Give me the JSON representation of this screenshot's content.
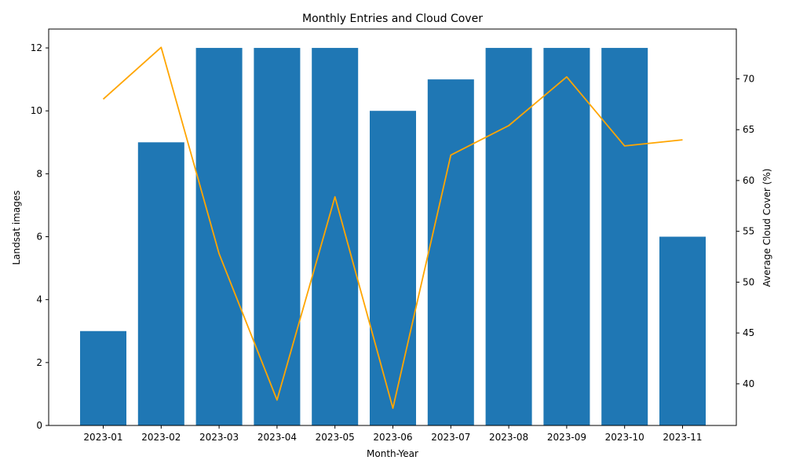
{
  "chart_data": {
    "type": "bar",
    "title": "Monthly Entries and Cloud Cover",
    "xlabel": "Month-Year",
    "ylabel": "Landsat images",
    "y2label": "Average Cloud Cover (%)",
    "categories": [
      "2023-01",
      "2023-02",
      "2023-03",
      "2023-04",
      "2023-05",
      "2023-06",
      "2023-07",
      "2023-08",
      "2023-09",
      "2023-10",
      "2023-11"
    ],
    "series": [
      {
        "type": "bar",
        "axis": "left",
        "color": "#1f77b4",
        "values": [
          3,
          9,
          12,
          12,
          12,
          10,
          11,
          12,
          12,
          12,
          6
        ]
      },
      {
        "type": "line",
        "axis": "right",
        "color": "#ffa500",
        "values": [
          68.0,
          73.1,
          52.8,
          38.4,
          58.4,
          37.6,
          62.5,
          65.4,
          70.2,
          63.4,
          64.0
        ]
      }
    ],
    "ylim": [
      0,
      12.6
    ],
    "y2lim": [
      35.9,
      74.9
    ],
    "yticks": [
      0,
      2,
      4,
      6,
      8,
      10,
      12
    ],
    "y2ticks": [
      40,
      45,
      50,
      55,
      60,
      65,
      70
    ],
    "grid": false
  }
}
